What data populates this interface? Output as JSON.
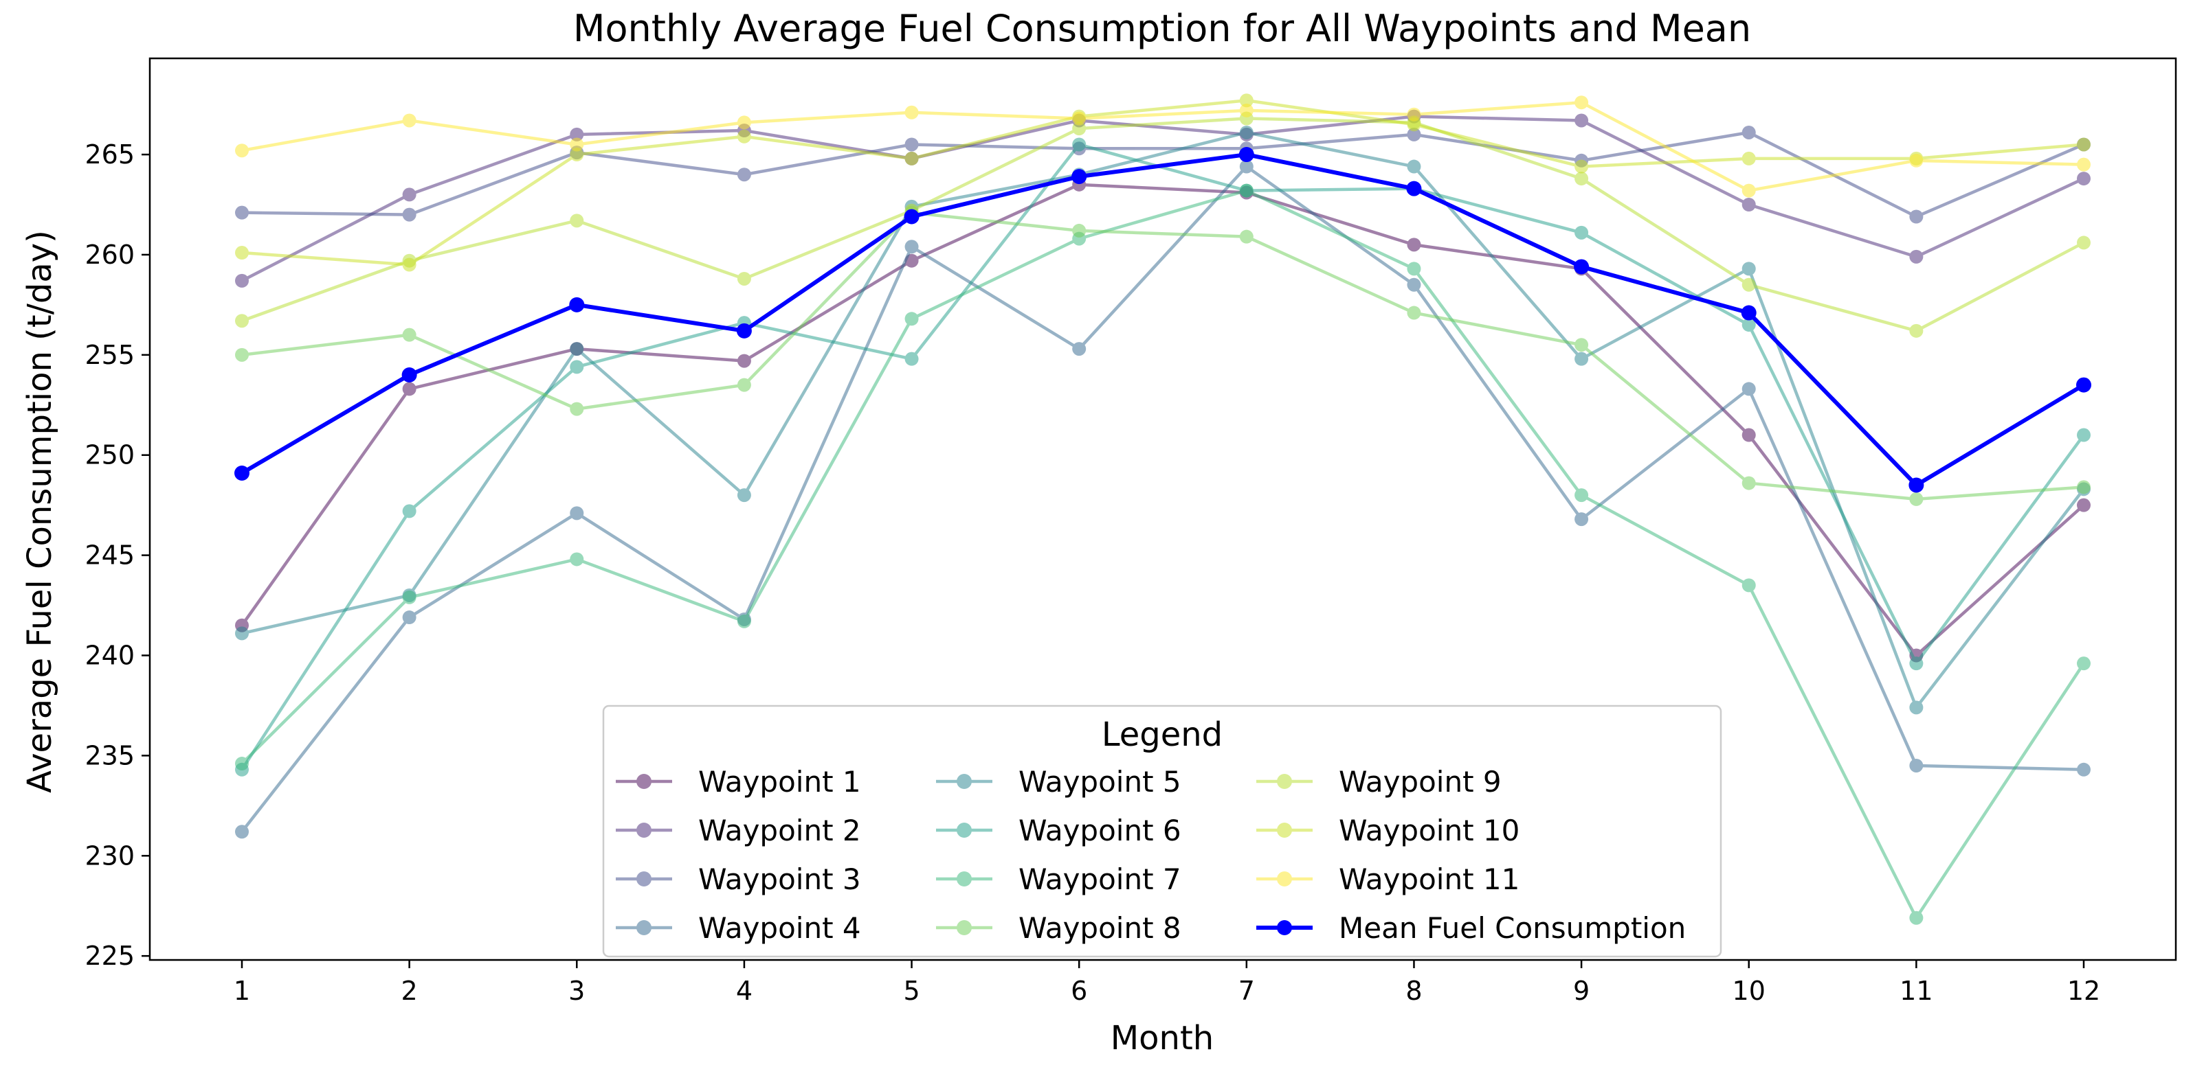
{
  "chart_data": {
    "type": "line",
    "title": "Monthly Average Fuel Consumption for All Waypoints and Mean",
    "xlabel": "Month",
    "ylabel": "Average Fuel Consumption (t/day)",
    "x": [
      1,
      2,
      3,
      4,
      5,
      6,
      7,
      8,
      9,
      10,
      11,
      12
    ],
    "x_tick_labels": [
      "1",
      "2",
      "3",
      "4",
      "5",
      "6",
      "7",
      "8",
      "9",
      "10",
      "11",
      "12"
    ],
    "ylim": [
      224.8,
      269.8
    ],
    "y_ticks": [
      225,
      230,
      235,
      240,
      245,
      250,
      255,
      260,
      265
    ],
    "y_tick_labels": [
      "225",
      "230",
      "235",
      "240",
      "245",
      "250",
      "255",
      "260",
      "265"
    ],
    "legend": {
      "title": "Legend",
      "placement": "lower-center"
    },
    "series": [
      {
        "name": "Waypoint 1",
        "color": "#440154",
        "values": [
          241.5,
          253.3,
          255.3,
          254.7,
          259.7,
          263.5,
          263.1,
          260.5,
          259.3,
          251.0,
          240.0,
          247.5
        ]
      },
      {
        "name": "Waypoint 2",
        "color": "#482878",
        "values": [
          258.7,
          263.0,
          266.0,
          266.2,
          264.8,
          266.7,
          266.0,
          266.9,
          266.7,
          262.5,
          259.9,
          263.8
        ]
      },
      {
        "name": "Waypoint 3",
        "color": "#3e4989",
        "values": [
          262.1,
          262.0,
          265.1,
          264.0,
          265.5,
          265.3,
          265.3,
          266.0,
          264.7,
          266.1,
          261.9,
          265.5
        ]
      },
      {
        "name": "Waypoint 4",
        "color": "#31688e",
        "values": [
          231.2,
          241.9,
          247.1,
          241.8,
          260.4,
          255.3,
          264.4,
          258.5,
          246.8,
          253.3,
          234.5,
          234.3
        ]
      },
      {
        "name": "Waypoint 5",
        "color": "#26828e",
        "values": [
          241.1,
          243.0,
          255.3,
          248.0,
          262.4,
          264.0,
          266.1,
          264.4,
          254.8,
          259.3,
          237.4,
          248.3
        ]
      },
      {
        "name": "Waypoint 6",
        "color": "#1f9e89",
        "values": [
          234.3,
          247.2,
          254.4,
          256.6,
          254.8,
          265.5,
          263.2,
          263.3,
          261.1,
          256.5,
          239.6,
          251.0
        ]
      },
      {
        "name": "Waypoint 7",
        "color": "#35b779",
        "values": [
          234.6,
          242.9,
          244.8,
          241.7,
          256.8,
          260.8,
          263.2,
          259.3,
          248.0,
          243.5,
          226.9,
          239.6
        ]
      },
      {
        "name": "Waypoint 8",
        "color": "#6ece58",
        "values": [
          255.0,
          256.0,
          252.3,
          253.5,
          262.1,
          261.2,
          260.9,
          257.1,
          255.5,
          248.6,
          247.8,
          248.4
        ]
      },
      {
        "name": "Waypoint 9",
        "color": "#b5de2b",
        "values": [
          256.7,
          259.7,
          261.7,
          258.8,
          262.2,
          266.3,
          266.8,
          266.6,
          263.8,
          258.5,
          256.2,
          260.6
        ]
      },
      {
        "name": "Waypoint 10",
        "color": "#c8e020",
        "values": [
          260.1,
          259.5,
          265.0,
          265.9,
          264.8,
          266.9,
          267.7,
          266.5,
          264.4,
          264.8,
          264.8,
          265.5
        ]
      },
      {
        "name": "Waypoint 11",
        "color": "#fde725",
        "values": [
          265.2,
          266.7,
          265.5,
          266.6,
          267.1,
          266.8,
          267.2,
          267.0,
          267.6,
          263.2,
          264.7,
          264.5
        ]
      },
      {
        "name": "Mean Fuel Consumption",
        "color": "#0000ff",
        "values": [
          249.1,
          254.0,
          257.5,
          256.2,
          261.9,
          263.9,
          265.0,
          263.3,
          259.4,
          257.1,
          248.5,
          253.5
        ]
      }
    ]
  }
}
